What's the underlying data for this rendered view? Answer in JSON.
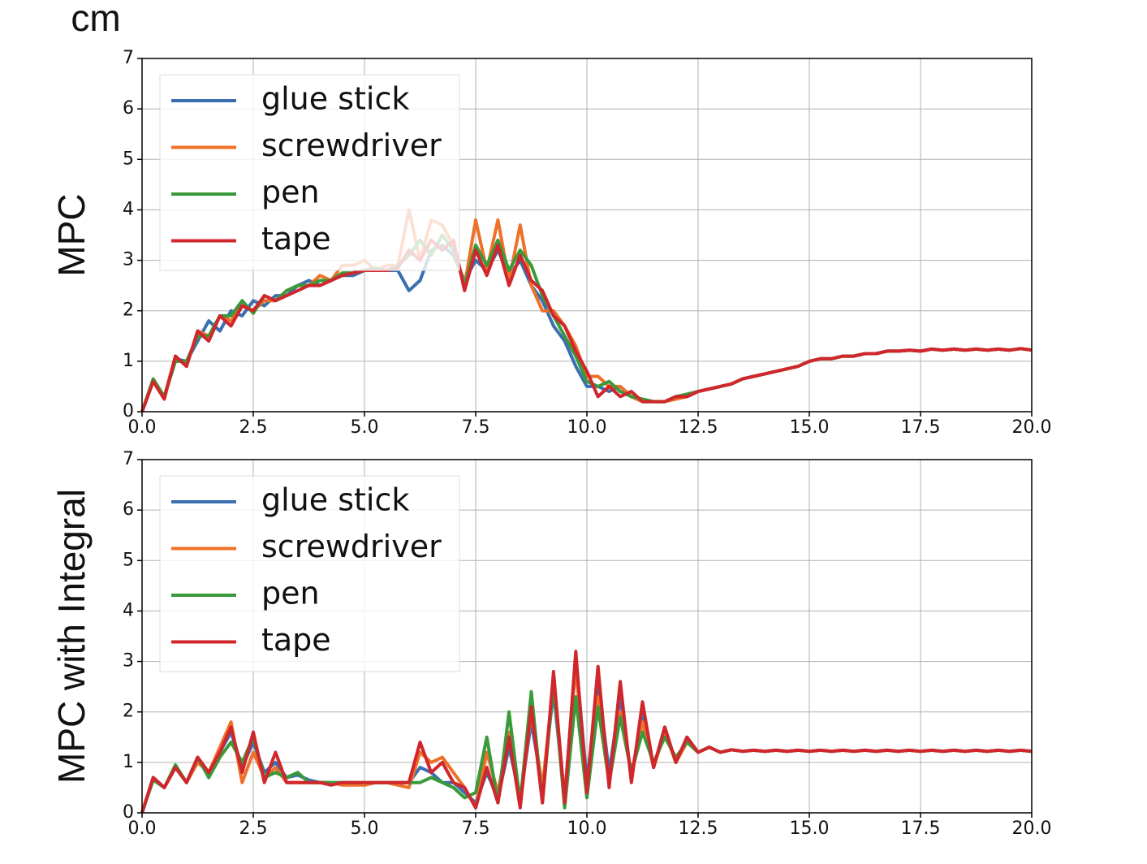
{
  "chart_data": [
    {
      "type": "line",
      "ylabel": "MPC",
      "y_unit": "cm",
      "x": [
        0,
        0.25,
        0.5,
        0.75,
        1,
        1.25,
        1.5,
        1.75,
        2,
        2.25,
        2.5,
        2.75,
        3,
        3.25,
        3.5,
        3.75,
        4,
        4.25,
        4.5,
        4.75,
        5,
        5.25,
        5.5,
        5.75,
        6,
        6.25,
        6.5,
        6.75,
        7,
        7.25,
        7.5,
        7.75,
        8,
        8.25,
        8.5,
        8.75,
        9,
        9.25,
        9.5,
        9.75,
        10,
        10.25,
        10.5,
        10.75,
        11,
        11.25,
        11.5,
        11.75,
        12,
        12.25,
        12.5,
        12.75,
        13,
        13.25,
        13.5,
        13.75,
        14,
        14.25,
        14.5,
        14.75,
        15,
        15.25,
        15.5,
        15.75,
        16,
        16.25,
        16.5,
        16.75,
        17,
        17.25,
        17.5,
        17.75,
        18,
        18.25,
        18.5,
        18.75,
        19,
        19.25,
        19.5,
        19.75,
        20
      ],
      "series": [
        {
          "name": "glue stick",
          "color": "#3a6fb0",
          "values": [
            0,
            0.6,
            0.3,
            1.05,
            1.0,
            1.4,
            1.8,
            1.6,
            2.0,
            1.9,
            2.2,
            2.1,
            2.3,
            2.3,
            2.5,
            2.6,
            2.5,
            2.6,
            2.7,
            2.7,
            2.8,
            2.8,
            2.8,
            2.8,
            2.4,
            2.6,
            3.2,
            3.3,
            3.1,
            2.6,
            3.0,
            2.8,
            3.2,
            2.7,
            3.0,
            2.5,
            2.2,
            1.7,
            1.4,
            0.9,
            0.5,
            0.5,
            0.4,
            0.5,
            0.3,
            0.2,
            0.2,
            0.2,
            0.3,
            0.3,
            0.4,
            0.45,
            0.5,
            0.55,
            0.65,
            0.7,
            0.75,
            0.8,
            0.85,
            0.9,
            1.0,
            1.05,
            1.05,
            1.1,
            1.1,
            1.15,
            1.15,
            1.2,
            1.2,
            1.22,
            1.2,
            1.24,
            1.22,
            1.24,
            1.22,
            1.24,
            1.22,
            1.24,
            1.22,
            1.25,
            1.22
          ]
        },
        {
          "name": "screwdriver",
          "color": "#f0702a",
          "values": [
            0,
            0.6,
            0.3,
            1.1,
            0.9,
            1.6,
            1.5,
            1.9,
            1.8,
            2.1,
            2.0,
            2.2,
            2.2,
            2.4,
            2.5,
            2.5,
            2.7,
            2.6,
            2.9,
            2.9,
            3.0,
            2.8,
            2.9,
            2.9,
            4.0,
            3.0,
            3.8,
            3.7,
            3.3,
            2.5,
            3.8,
            2.8,
            3.8,
            2.6,
            3.7,
            2.5,
            2.0,
            2.0,
            1.7,
            1.3,
            0.7,
            0.7,
            0.5,
            0.5,
            0.3,
            0.2,
            0.2,
            0.2,
            0.25,
            0.3,
            0.4,
            0.45,
            0.5,
            0.55,
            0.65,
            0.7,
            0.75,
            0.8,
            0.85,
            0.9,
            1.0,
            1.05,
            1.05,
            1.1,
            1.1,
            1.15,
            1.15,
            1.2,
            1.2,
            1.22,
            1.2,
            1.24,
            1.22,
            1.24,
            1.22,
            1.24,
            1.22,
            1.24,
            1.22,
            1.25,
            1.22
          ]
        },
        {
          "name": "pen",
          "color": "#3a9a3a",
          "values": [
            0,
            0.65,
            0.3,
            1.0,
            1.0,
            1.5,
            1.5,
            1.9,
            1.9,
            2.2,
            1.95,
            2.3,
            2.2,
            2.4,
            2.5,
            2.5,
            2.6,
            2.6,
            2.75,
            2.75,
            2.8,
            2.85,
            2.8,
            2.9,
            3.1,
            3.4,
            3.1,
            3.5,
            3.2,
            2.5,
            3.3,
            2.9,
            3.4,
            2.8,
            3.2,
            2.9,
            2.3,
            1.9,
            1.5,
            1.1,
            0.6,
            0.5,
            0.6,
            0.4,
            0.3,
            0.25,
            0.2,
            0.2,
            0.3,
            0.35,
            0.4,
            0.45,
            0.5,
            0.55,
            0.65,
            0.7,
            0.75,
            0.8,
            0.85,
            0.9,
            1.0,
            1.05,
            1.05,
            1.1,
            1.1,
            1.15,
            1.15,
            1.2,
            1.2,
            1.22,
            1.2,
            1.24,
            1.22,
            1.24,
            1.22,
            1.24,
            1.22,
            1.24,
            1.22,
            1.25,
            1.22
          ]
        },
        {
          "name": "tape",
          "color": "#d0262c",
          "values": [
            0,
            0.6,
            0.25,
            1.1,
            0.9,
            1.6,
            1.4,
            1.9,
            1.7,
            2.1,
            2.0,
            2.3,
            2.2,
            2.3,
            2.4,
            2.5,
            2.5,
            2.6,
            2.7,
            2.75,
            2.8,
            2.8,
            2.8,
            2.85,
            3.2,
            3.0,
            3.4,
            3.2,
            3.4,
            2.4,
            3.2,
            2.7,
            3.3,
            2.5,
            3.1,
            2.6,
            2.4,
            1.9,
            1.7,
            1.2,
            0.8,
            0.3,
            0.5,
            0.3,
            0.4,
            0.2,
            0.2,
            0.2,
            0.3,
            0.3,
            0.4,
            0.45,
            0.5,
            0.55,
            0.65,
            0.7,
            0.75,
            0.8,
            0.85,
            0.9,
            1.0,
            1.05,
            1.05,
            1.1,
            1.1,
            1.15,
            1.15,
            1.2,
            1.2,
            1.22,
            1.2,
            1.24,
            1.22,
            1.24,
            1.22,
            1.24,
            1.22,
            1.24,
            1.22,
            1.25,
            1.22
          ]
        }
      ],
      "xlim": [
        0,
        20
      ],
      "ylim": [
        0,
        7
      ],
      "xticks": [
        {
          "value": 0,
          "label": "0.0"
        },
        {
          "value": 2.5,
          "label": "2.5"
        },
        {
          "value": 5,
          "label": "5.0"
        },
        {
          "value": 7.5,
          "label": "7.5"
        },
        {
          "value": 10,
          "label": "10.0"
        },
        {
          "value": 12.5,
          "label": "12.5"
        },
        {
          "value": 15,
          "label": "15.0"
        },
        {
          "value": 17.5,
          "label": "17.5"
        },
        {
          "value": 20,
          "label": "20.0"
        }
      ],
      "yticks": [
        0,
        1,
        2,
        3,
        4,
        5,
        6,
        7
      ],
      "grid": true,
      "legend": "upper left"
    },
    {
      "type": "line",
      "ylabel": "MPC with Integral",
      "x": [
        0,
        0.25,
        0.5,
        0.75,
        1,
        1.25,
        1.5,
        1.75,
        2,
        2.25,
        2.5,
        2.75,
        3,
        3.25,
        3.5,
        3.75,
        4,
        4.25,
        4.5,
        4.75,
        5,
        5.25,
        5.5,
        5.75,
        6,
        6.25,
        6.5,
        6.75,
        7,
        7.25,
        7.5,
        7.75,
        8,
        8.25,
        8.5,
        8.75,
        9,
        9.25,
        9.5,
        9.75,
        10,
        10.25,
        10.5,
        10.75,
        11,
        11.25,
        11.5,
        11.75,
        12,
        12.25,
        12.5,
        12.75,
        13,
        13.25,
        13.5,
        13.75,
        14,
        14.25,
        14.5,
        14.75,
        15,
        15.25,
        15.5,
        15.75,
        16,
        16.25,
        16.5,
        16.75,
        17,
        17.25,
        17.5,
        17.75,
        18,
        18.25,
        18.5,
        18.75,
        19,
        19.25,
        19.5,
        19.75,
        20
      ],
      "series": [
        {
          "name": "glue stick",
          "color": "#3a6fb0",
          "values": [
            0,
            0.7,
            0.5,
            0.9,
            0.6,
            1.1,
            0.7,
            1.2,
            1.6,
            0.9,
            1.4,
            0.8,
            1.0,
            0.7,
            0.75,
            0.65,
            0.6,
            0.6,
            0.6,
            0.6,
            0.55,
            0.6,
            0.6,
            0.6,
            0.6,
            0.9,
            0.8,
            0.6,
            0.6,
            0.4,
            0.2,
            0.8,
            0.3,
            1.3,
            0.3,
            1.8,
            0.5,
            2.4,
            0.3,
            3.1,
            0.6,
            2.6,
            0.8,
            2.3,
            0.7,
            2.0,
            0.9,
            1.7,
            1.0,
            1.5,
            1.2,
            1.3,
            1.2,
            1.25,
            1.22,
            1.24,
            1.22,
            1.24,
            1.22,
            1.24,
            1.22,
            1.24,
            1.22,
            1.24,
            1.22,
            1.24,
            1.22,
            1.24,
            1.22,
            1.24,
            1.22,
            1.24,
            1.22,
            1.24,
            1.22,
            1.24,
            1.22,
            1.24,
            1.22,
            1.24,
            1.22
          ]
        },
        {
          "name": "screwdriver",
          "color": "#f0702a",
          "values": [
            0,
            0.7,
            0.5,
            0.9,
            0.6,
            1.0,
            0.8,
            1.3,
            1.8,
            0.6,
            1.2,
            0.7,
            0.9,
            0.6,
            0.6,
            0.6,
            0.6,
            0.6,
            0.55,
            0.55,
            0.55,
            0.6,
            0.6,
            0.55,
            0.5,
            1.2,
            1.0,
            1.1,
            0.8,
            0.5,
            0.1,
            1.2,
            0.4,
            1.6,
            0.2,
            2.0,
            0.5,
            2.6,
            0.3,
            2.9,
            0.4,
            2.3,
            0.6,
            2.0,
            0.8,
            1.8,
            0.9,
            1.6,
            1.0,
            1.4,
            1.2,
            1.3,
            1.2,
            1.25,
            1.22,
            1.24,
            1.22,
            1.24,
            1.22,
            1.24,
            1.22,
            1.24,
            1.22,
            1.24,
            1.22,
            1.24,
            1.22,
            1.24,
            1.22,
            1.24,
            1.22,
            1.24,
            1.22,
            1.24,
            1.22,
            1.24,
            1.22,
            1.24,
            1.22,
            1.24,
            1.22
          ]
        },
        {
          "name": "pen",
          "color": "#3a9a3a",
          "values": [
            0,
            0.65,
            0.5,
            0.95,
            0.6,
            1.1,
            0.7,
            1.1,
            1.4,
            1.0,
            1.5,
            0.7,
            0.8,
            0.7,
            0.8,
            0.6,
            0.6,
            0.6,
            0.6,
            0.6,
            0.6,
            0.6,
            0.6,
            0.6,
            0.6,
            0.6,
            0.7,
            0.6,
            0.5,
            0.3,
            0.4,
            1.5,
            0.2,
            2.0,
            0.2,
            2.4,
            0.2,
            2.6,
            0.1,
            2.3,
            0.3,
            2.1,
            0.6,
            1.9,
            0.8,
            1.6,
            1.0,
            1.5,
            1.1,
            1.4,
            1.2,
            1.3,
            1.2,
            1.25,
            1.22,
            1.24,
            1.22,
            1.24,
            1.22,
            1.24,
            1.22,
            1.24,
            1.22,
            1.24,
            1.22,
            1.24,
            1.22,
            1.24,
            1.22,
            1.24,
            1.22,
            1.24,
            1.22,
            1.24,
            1.22,
            1.24,
            1.22,
            1.24,
            1.22,
            1.24,
            1.22
          ]
        },
        {
          "name": "tape",
          "color": "#d0262c",
          "values": [
            0,
            0.7,
            0.5,
            0.9,
            0.6,
            1.1,
            0.8,
            1.2,
            1.7,
            0.8,
            1.6,
            0.6,
            1.2,
            0.6,
            0.6,
            0.6,
            0.6,
            0.55,
            0.6,
            0.6,
            0.6,
            0.6,
            0.6,
            0.6,
            0.6,
            1.4,
            0.8,
            1.0,
            0.6,
            0.5,
            0.1,
            0.9,
            0.2,
            1.5,
            0.1,
            2.1,
            0.2,
            2.8,
            0.2,
            3.2,
            0.4,
            2.9,
            0.5,
            2.6,
            0.6,
            2.2,
            0.9,
            1.7,
            1.0,
            1.5,
            1.2,
            1.3,
            1.2,
            1.25,
            1.22,
            1.24,
            1.22,
            1.24,
            1.22,
            1.24,
            1.22,
            1.24,
            1.22,
            1.24,
            1.22,
            1.24,
            1.22,
            1.24,
            1.22,
            1.24,
            1.22,
            1.24,
            1.22,
            1.24,
            1.22,
            1.24,
            1.22,
            1.24,
            1.22,
            1.24,
            1.22
          ]
        }
      ],
      "xlim": [
        0,
        20
      ],
      "ylim": [
        0,
        7
      ],
      "xticks": [
        {
          "value": 0,
          "label": "0.0"
        },
        {
          "value": 2.5,
          "label": "2.5"
        },
        {
          "value": 5,
          "label": "5.0"
        },
        {
          "value": 7.5,
          "label": "7.5"
        },
        {
          "value": 10,
          "label": "10.0"
        },
        {
          "value": 12.5,
          "label": "12.5"
        },
        {
          "value": 15,
          "label": "15.0"
        },
        {
          "value": 17.5,
          "label": "17.5"
        },
        {
          "value": 20,
          "label": "20.0"
        }
      ],
      "yticks": [
        0,
        1,
        2,
        3,
        4,
        5,
        6,
        7
      ],
      "grid": true,
      "legend": "upper left"
    }
  ]
}
